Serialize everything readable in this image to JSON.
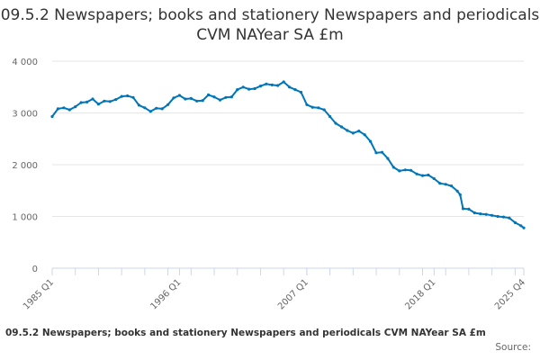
{
  "chart_data": {
    "type": "line",
    "title": "09.5.2 Newspapers; books and stationery Newspapers and periodicals CVM NAYear SA £m",
    "subtitle": "",
    "xlabel": "",
    "ylabel": "",
    "legend": "none",
    "grid": true,
    "ylim": [
      0,
      4000
    ],
    "y_ticks": [
      0,
      1000,
      2000,
      3000,
      4000
    ],
    "y_tick_labels": [
      "0",
      "1 000",
      "2 000",
      "3 000",
      "4 000"
    ],
    "x_tick_labels": [
      "1985 Q1",
      "1996 Q1",
      "2007 Q1",
      "2018 Q1",
      "2025 Q4"
    ],
    "x_tick_values": [
      1985.0,
      1996.0,
      2007.0,
      2018.0,
      2025.75
    ],
    "xlim": [
      1985.0,
      2025.75
    ],
    "line_color": "#0075b8",
    "series": [
      {
        "x": [
          1985.0,
          1985.5,
          1986.0,
          1986.5,
          1987.0,
          1987.5,
          1988.0,
          1988.5,
          1989.0,
          1989.5,
          1990.0,
          1990.5,
          1991.0,
          1991.5,
          1992.0,
          1992.5,
          1993.0,
          1993.5,
          1994.0,
          1994.5,
          1995.0,
          1995.5,
          1996.0,
          1996.5,
          1997.0,
          1997.5,
          1998.0,
          1998.5,
          1999.0,
          1999.5,
          2000.0,
          2000.5,
          2001.0,
          2001.5,
          2002.0,
          2002.5,
          2003.0,
          2003.5,
          2004.0,
          2004.5,
          2005.0,
          2005.5,
          2006.0,
          2006.5,
          2007.0,
          2007.5,
          2008.0,
          2008.5,
          2009.0,
          2009.5,
          2010.0,
          2010.5,
          2011.0,
          2011.5,
          2012.0,
          2012.5,
          2013.0,
          2013.5,
          2014.0,
          2014.5,
          2015.0,
          2015.5,
          2016.0,
          2016.5,
          2017.0,
          2017.5,
          2018.0,
          2018.5,
          2019.0,
          2019.5,
          2020.0,
          2020.25,
          2020.5,
          2021.0,
          2021.5,
          2022.0,
          2022.5,
          2023.0,
          2023.5,
          2024.0,
          2024.5,
          2025.0,
          2025.5,
          2025.75
        ],
        "values": [
          2930,
          3080,
          3100,
          3060,
          3120,
          3200,
          3210,
          3270,
          3170,
          3230,
          3220,
          3260,
          3320,
          3330,
          3300,
          3150,
          3100,
          3030,
          3090,
          3080,
          3160,
          3290,
          3340,
          3270,
          3280,
          3230,
          3240,
          3350,
          3310,
          3250,
          3300,
          3310,
          3450,
          3500,
          3460,
          3470,
          3520,
          3560,
          3540,
          3530,
          3600,
          3500,
          3450,
          3400,
          3160,
          3110,
          3100,
          3060,
          2930,
          2800,
          2730,
          2660,
          2610,
          2650,
          2580,
          2450,
          2230,
          2240,
          2120,
          1950,
          1880,
          1900,
          1890,
          1820,
          1790,
          1800,
          1730,
          1640,
          1620,
          1590,
          1490,
          1420,
          1150,
          1140,
          1070,
          1050,
          1040,
          1020,
          1000,
          990,
          970,
          880,
          820,
          780
        ]
      }
    ],
    "caption": "09.5.2 Newspapers; books and stationery Newspapers and periodicals CVM NAYear SA £m",
    "source_label": "Source:"
  }
}
